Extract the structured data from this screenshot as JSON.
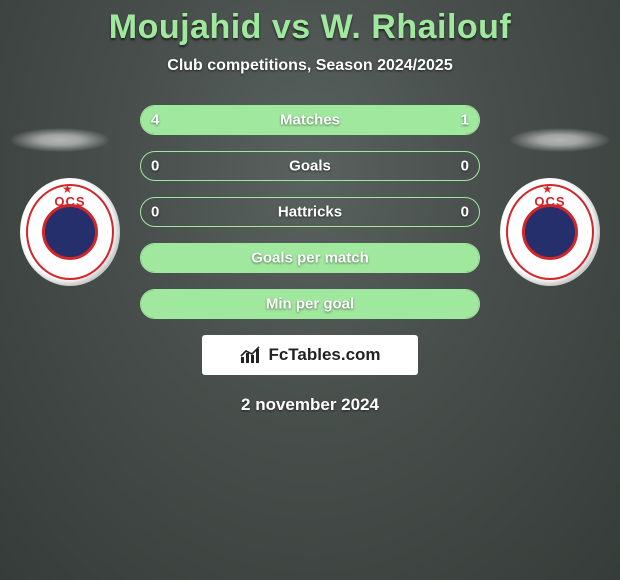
{
  "header": {
    "title": "Moujahid vs W. Rhailouf",
    "subtitle": "Club competitions, Season 2024/2025"
  },
  "stats": {
    "rows": [
      {
        "label": "Matches",
        "left_value": "4",
        "right_value": "1",
        "left_fill_pct": 80,
        "right_fill_pct": 20
      },
      {
        "label": "Goals",
        "left_value": "0",
        "right_value": "0",
        "left_fill_pct": 0,
        "right_fill_pct": 0
      },
      {
        "label": "Hattricks",
        "left_value": "0",
        "right_value": "0",
        "left_fill_pct": 0,
        "right_fill_pct": 0
      },
      {
        "label": "Goals per match",
        "left_value": "",
        "right_value": "",
        "left_fill_pct": 100,
        "right_fill_pct": 0
      },
      {
        "label": "Min per goal",
        "left_value": "",
        "right_value": "",
        "left_fill_pct": 100,
        "right_fill_pct": 0
      }
    ]
  },
  "brand": {
    "label": "FcTables.com"
  },
  "date": {
    "text": "2 november 2024"
  },
  "clubs": {
    "left": {
      "abbrev": "OCS"
    },
    "right": {
      "abbrev": "OCS"
    }
  },
  "colors": {
    "accent": "#a1e89f",
    "badge_red": "#d4252a",
    "badge_blue": "#252f6b",
    "text_white": "#ffffff",
    "bg_dark": "#484f4c"
  }
}
